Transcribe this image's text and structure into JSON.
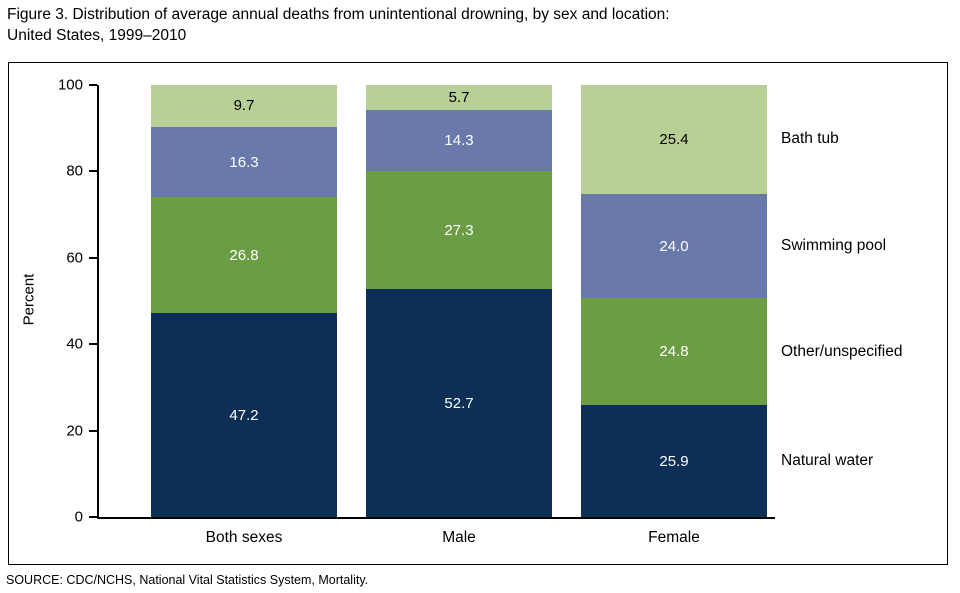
{
  "header": {
    "title": "Figure 3. Distribution of average annual deaths from unintentional drowning, by sex and location:\nUnited States, 1999–2010"
  },
  "footer": {
    "source": "SOURCE: CDC/NCHS, National Vital Statistics System, Mortality."
  },
  "chart_data": {
    "type": "bar",
    "stacked": true,
    "title": "Figure 3. Distribution of average annual deaths from unintentional drowning, by sex and location: United States, 1999–2010",
    "categories": [
      "Both sexes",
      "Male",
      "Female"
    ],
    "series": [
      {
        "name": "Natural water",
        "color": "#0d2f56",
        "label_color": "#ffffff",
        "values": [
          47.2,
          52.7,
          25.9
        ]
      },
      {
        "name": "Other/unspecified",
        "color": "#6a9d44",
        "label_color": "#ffffff",
        "values": [
          26.8,
          27.3,
          24.8
        ]
      },
      {
        "name": "Swimming pool",
        "color": "#6879aa",
        "label_color": "#ffffff",
        "values": [
          16.3,
          14.3,
          24.0
        ]
      },
      {
        "name": "Bath tub",
        "color": "#b8cf96",
        "label_color": "#000000",
        "values": [
          9.7,
          5.7,
          25.4
        ]
      }
    ],
    "ylabel": "Percent",
    "ylim": [
      0,
      100
    ],
    "yticks": [
      0,
      20,
      40,
      60,
      80,
      100
    ],
    "grid": false,
    "legend_position": "right",
    "legend_labels_top_to_bottom": [
      "Bath tub",
      "Swimming pool",
      "Other/unspecified",
      "Natural water"
    ],
    "value_label_decimals": 1
  }
}
